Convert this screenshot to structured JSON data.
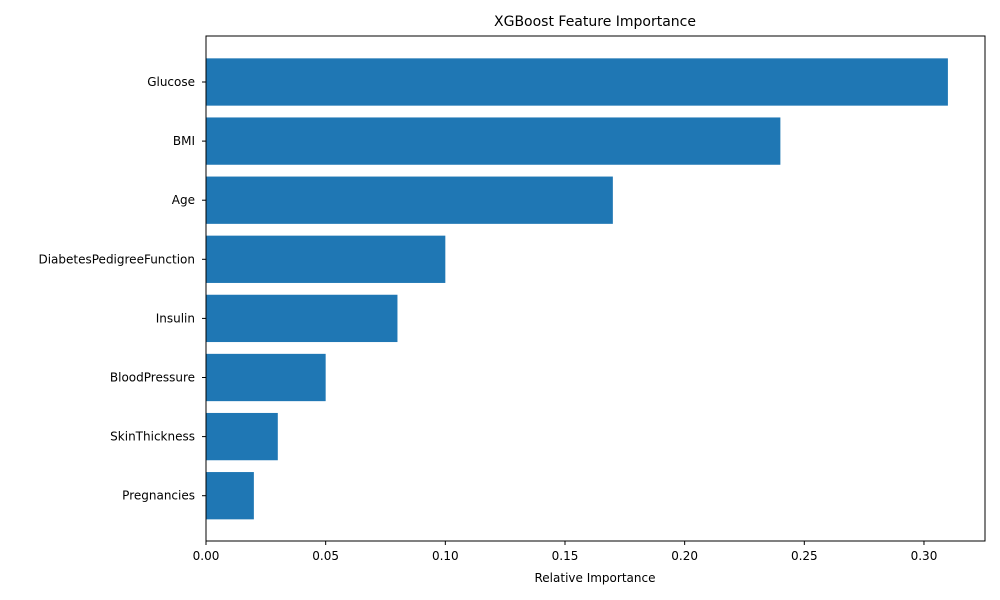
{
  "chart_data": {
    "type": "bar",
    "orientation": "horizontal",
    "title": "XGBoost Feature Importance",
    "xlabel": "Relative Importance",
    "ylabel": "",
    "categories": [
      "Glucose",
      "BMI",
      "Age",
      "DiabetesPedigreeFunction",
      "Insulin",
      "BloodPressure",
      "SkinThickness",
      "Pregnancies"
    ],
    "values": [
      0.31,
      0.24,
      0.17,
      0.1,
      0.08,
      0.05,
      0.03,
      0.02
    ],
    "xlim": [
      0,
      0.3255
    ],
    "xticks": [
      0.0,
      0.05,
      0.1,
      0.15,
      0.2,
      0.25,
      0.3
    ],
    "xtick_labels": [
      "0.00",
      "0.05",
      "0.10",
      "0.15",
      "0.20",
      "0.25",
      "0.30"
    ],
    "bar_color": "#1f77b4",
    "grid": false,
    "legend": "none"
  }
}
